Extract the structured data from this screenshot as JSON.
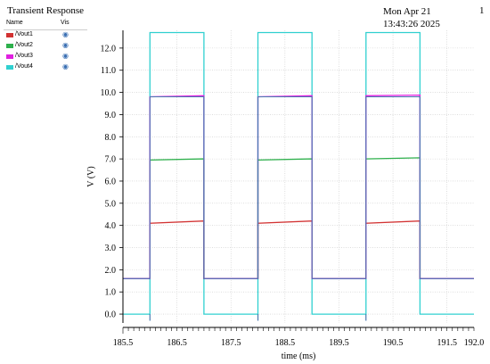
{
  "header": {
    "title": "Transient Response",
    "timestamp": "Mon Apr 21 13:43:26 2025",
    "page_number": "1"
  },
  "legend": {
    "name_header": "Name",
    "vis_header": "Vis",
    "items": [
      {
        "label": "/Vout1",
        "color": "#d23232",
        "icon": "eye-icon"
      },
      {
        "label": "/Vout2",
        "color": "#2eb04c",
        "icon": "eye-icon"
      },
      {
        "label": "/Vout3",
        "color": "#e020e0",
        "icon": "eye-icon"
      },
      {
        "label": "/Vout4",
        "color": "#30d0d0",
        "icon": "eye-icon"
      }
    ]
  },
  "chart_data": {
    "type": "line",
    "xlabel": "time (ms)",
    "ylabel": "V (V)",
    "xlim": [
      185.5,
      192.0
    ],
    "ylim": [
      -0.4,
      12.8
    ],
    "xticks": [
      "185.5",
      "186.5",
      "187.5",
      "188.5",
      "189.5",
      "190.5",
      "191.5",
      "192.0"
    ],
    "yticks": [
      "0.0",
      "1.0",
      "2.0",
      "3.0",
      "4.0",
      "5.0",
      "6.0",
      "7.0",
      "8.0",
      "9.0",
      "10.0",
      "11.0",
      "12.0"
    ],
    "grid": true,
    "series": [
      {
        "name": "/Vout4",
        "color": "#30d0d0",
        "points": [
          [
            185.5,
            0.0
          ],
          [
            186.0,
            0.0
          ],
          [
            186.0,
            12.7
          ],
          [
            187.0,
            12.7
          ],
          [
            187.0,
            0.0
          ],
          [
            188.0,
            0.0
          ],
          [
            188.0,
            12.7
          ],
          [
            189.0,
            12.7
          ],
          [
            189.0,
            0.0
          ],
          [
            190.0,
            0.0
          ],
          [
            190.0,
            12.7
          ],
          [
            191.0,
            12.7
          ],
          [
            191.0,
            0.0
          ],
          [
            192.0,
            0.0
          ]
        ]
      },
      {
        "name": "/Vout1",
        "color": "#d23232",
        "points": [
          [
            185.5,
            1.6
          ],
          [
            186.0,
            1.6
          ],
          [
            186.0,
            4.1
          ],
          [
            187.0,
            4.2
          ],
          [
            187.0,
            1.6
          ],
          [
            188.0,
            1.6
          ],
          [
            188.0,
            4.1
          ],
          [
            189.0,
            4.2
          ],
          [
            189.0,
            1.6
          ],
          [
            190.0,
            1.6
          ],
          [
            190.0,
            4.1
          ],
          [
            191.0,
            4.2
          ],
          [
            191.0,
            1.6
          ],
          [
            192.0,
            1.6
          ]
        ]
      },
      {
        "name": "/Vout2",
        "color": "#2eb04c",
        "points": [
          [
            185.5,
            1.6
          ],
          [
            186.0,
            1.6
          ],
          [
            186.0,
            6.95
          ],
          [
            187.0,
            7.0
          ],
          [
            187.0,
            1.6
          ],
          [
            188.0,
            1.6
          ],
          [
            188.0,
            6.95
          ],
          [
            189.0,
            7.0
          ],
          [
            189.0,
            1.6
          ],
          [
            190.0,
            1.6
          ],
          [
            190.0,
            7.0
          ],
          [
            191.0,
            7.05
          ],
          [
            191.0,
            1.6
          ],
          [
            192.0,
            1.6
          ]
        ]
      },
      {
        "name": "/Vout3",
        "color": "#e020e0",
        "points": [
          [
            185.5,
            1.6
          ],
          [
            186.0,
            1.6
          ],
          [
            186.0,
            9.8
          ],
          [
            187.0,
            9.85
          ],
          [
            187.0,
            1.6
          ],
          [
            188.0,
            1.6
          ],
          [
            188.0,
            9.8
          ],
          [
            189.0,
            9.85
          ],
          [
            189.0,
            1.6
          ],
          [
            190.0,
            1.6
          ],
          [
            190.0,
            9.85
          ],
          [
            191.0,
            9.88
          ],
          [
            191.0,
            1.6
          ],
          [
            192.0,
            1.6
          ]
        ]
      }
    ],
    "switching_line": {
      "color": "#4a7ab0",
      "points": [
        [
          185.5,
          1.6
        ],
        [
          186.0,
          1.6
        ],
        [
          186.0,
          9.8
        ],
        [
          187.0,
          9.8
        ],
        [
          187.0,
          1.6
        ],
        [
          188.0,
          1.6
        ],
        [
          188.0,
          9.8
        ],
        [
          189.0,
          9.8
        ],
        [
          189.0,
          1.6
        ],
        [
          190.0,
          1.6
        ],
        [
          190.0,
          9.8
        ],
        [
          191.0,
          9.8
        ],
        [
          191.0,
          1.6
        ],
        [
          192.0,
          1.6
        ]
      ]
    },
    "spikes": [
      {
        "x": 186.0,
        "y_from": 0.0,
        "y_to": -0.3
      },
      {
        "x": 188.0,
        "y_from": 0.0,
        "y_to": -0.3
      },
      {
        "x": 190.0,
        "y_from": 0.0,
        "y_to": -0.3
      }
    ]
  }
}
